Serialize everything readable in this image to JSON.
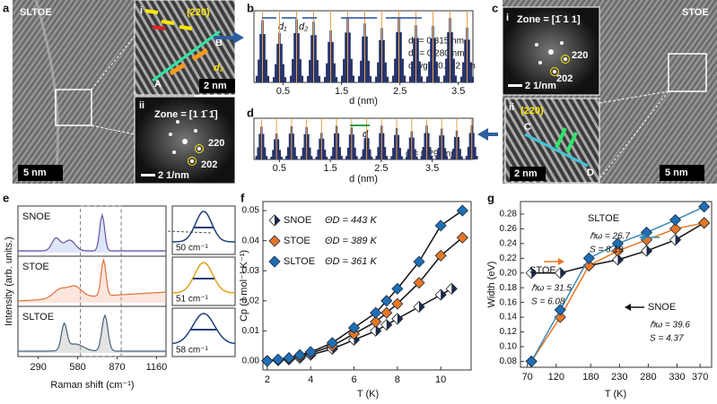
{
  "panels": {
    "a": {
      "letter": "a",
      "label": "SLTOE",
      "scale": "5 nm",
      "inset_i": {
        "index": "i",
        "plane": "(220)",
        "point_b": "B",
        "point_a": "A",
        "spacing": "d₂",
        "scale": "2 nm"
      },
      "inset_ii": {
        "index": "ii",
        "zone": "Zone = [1 1̄ 1̄]",
        "spot_1": "220",
        "spot_2": "202",
        "scale": "2 1/nm"
      }
    },
    "b": {
      "letter": "b",
      "xlim": [
        0,
        3.75
      ],
      "xticks": [
        0.5,
        1.5,
        2.5,
        3.5
      ],
      "xlabel": "d (nm)",
      "marker_1": "d₁",
      "marker_2": "d₂",
      "notes": [
        "d₁ = 0.315 nm",
        "d₂ = 0.280 nm",
        "davg = 0.292 nm"
      ]
    },
    "c": {
      "letter": "c",
      "label": "STOE",
      "scale": "5 nm",
      "inset_i": {
        "index": "i",
        "zone": "Zone = [1̄ 1 1]",
        "spot_1": "220",
        "spot_2": "202",
        "scale": "2 1/nm"
      },
      "inset_ii": {
        "index": "ii",
        "plane": "(220)",
        "point_c": "C",
        "point_d": "D",
        "scale": "2 nm"
      }
    },
    "d": {
      "letter": "d",
      "xlim": [
        0,
        4.3
      ],
      "xticks": [
        0.5,
        1.5,
        2.5,
        3.5
      ],
      "xlabel": "d (nm)",
      "marker": "d",
      "note": "d = 0.295 nm"
    },
    "e": {
      "letter": "e",
      "xlim": [
        140,
        1230
      ],
      "xticks": [
        290,
        580,
        870,
        1160
      ],
      "xlabel": "Raman shift (cm⁻¹)",
      "ylabel": "Intensity (arb. units.)",
      "samples": [
        "SNOE",
        "STOE",
        "SLTOE"
      ],
      "widths": [
        "50 cm⁻¹",
        "51 cm⁻¹",
        "58 cm⁻¹"
      ]
    }
  },
  "chart_data": [
    {
      "type": "scatter",
      "letter": "f",
      "xlabel": "T (K)",
      "ylabel": "Cp (J mol⁻¹ K⁻¹)",
      "xlim": [
        1.8,
        11.4
      ],
      "xticks": [
        2,
        4,
        6,
        8,
        10
      ],
      "ylim": [
        -0.003,
        0.053
      ],
      "yticks": [
        {
          "value": 0,
          "label": "0.00"
        },
        0.01,
        0.02,
        0.03,
        0.04,
        0.05
      ],
      "legend_notes": [
        "ΘD = 443 K",
        "ΘD = 389 K",
        "ΘD = 361 K"
      ],
      "series": [
        {
          "name": "SNOE",
          "color": "#1b2a4a",
          "marker": "half",
          "line_color": "#111111",
          "x": [
            2,
            2.5,
            3,
            3.5,
            4,
            5,
            6,
            7,
            7.5,
            8,
            9,
            10,
            10.5
          ],
          "values": [
            0.0,
            0.0002,
            0.0005,
            0.001,
            0.002,
            0.004,
            0.007,
            0.01,
            0.012,
            0.014,
            0.018,
            0.022,
            0.024
          ]
        },
        {
          "name": "STOE",
          "color": "#e87722",
          "marker": "diamond",
          "line_color": "#111111",
          "x": [
            2,
            2.5,
            3,
            3.5,
            4,
            5,
            6,
            7,
            7.5,
            8,
            9,
            10,
            11
          ],
          "values": [
            0.0,
            0.0003,
            0.0007,
            0.0015,
            0.0025,
            0.005,
            0.009,
            0.013,
            0.016,
            0.019,
            0.026,
            0.035,
            0.041
          ]
        },
        {
          "name": "SLTOE",
          "color": "#1f6fb5",
          "marker": "diamond",
          "line_color": "#111111",
          "x": [
            2,
            2.5,
            3,
            3.5,
            4,
            5,
            6,
            7,
            7.5,
            8,
            9,
            10,
            11
          ],
          "values": [
            0.0,
            0.0005,
            0.001,
            0.002,
            0.003,
            0.006,
            0.011,
            0.016,
            0.02,
            0.024,
            0.033,
            0.045,
            0.05
          ]
        }
      ]
    },
    {
      "type": "scatter",
      "letter": "g",
      "xlabel": "T (K)",
      "ylabel": "Width (eV)",
      "xlim": [
        58,
        390
      ],
      "xticks": [
        70,
        120,
        180,
        230,
        280,
        330,
        370
      ],
      "ylim": [
        0.072,
        0.297
      ],
      "yticks": [
        0.08,
        {
          "value": 0.1,
          "label": "0.10"
        },
        0.12,
        0.14,
        0.16,
        0.18,
        {
          "value": 0.2,
          "label": "0.20"
        },
        0.22,
        0.24,
        0.26,
        0.28
      ],
      "annotations": [
        [
          "ℏω = 39.6",
          "S = 4.37"
        ],
        [
          "ℏω = 31.5",
          "S = 6.08"
        ],
        [
          "ℏω = 26.7",
          "S = 8.19"
        ]
      ],
      "series": [
        {
          "name": "SNOE",
          "color": "#1b2a4a",
          "marker": "half",
          "line_color": "#111111",
          "x": [
            77,
            127,
            177,
            227,
            277,
            327,
            377
          ],
          "values": [
            0.2,
            0.2,
            0.21,
            0.218,
            0.23,
            0.245,
            0.268
          ]
        },
        {
          "name": "STOE",
          "color": "#e87722",
          "marker": "diamond",
          "line_color": "#e87722",
          "x": [
            77,
            127,
            177,
            227,
            277,
            327,
            377
          ],
          "values": [
            0.08,
            0.14,
            0.21,
            0.23,
            0.245,
            0.26,
            0.268
          ]
        },
        {
          "name": "SLTOE",
          "color": "#1f6fb5",
          "marker": "diamond",
          "line_color": "#3a8ab8",
          "x": [
            77,
            127,
            177,
            227,
            277,
            327,
            377
          ],
          "values": [
            0.08,
            0.15,
            0.22,
            0.24,
            0.255,
            0.272,
            0.29
          ]
        }
      ]
    }
  ]
}
